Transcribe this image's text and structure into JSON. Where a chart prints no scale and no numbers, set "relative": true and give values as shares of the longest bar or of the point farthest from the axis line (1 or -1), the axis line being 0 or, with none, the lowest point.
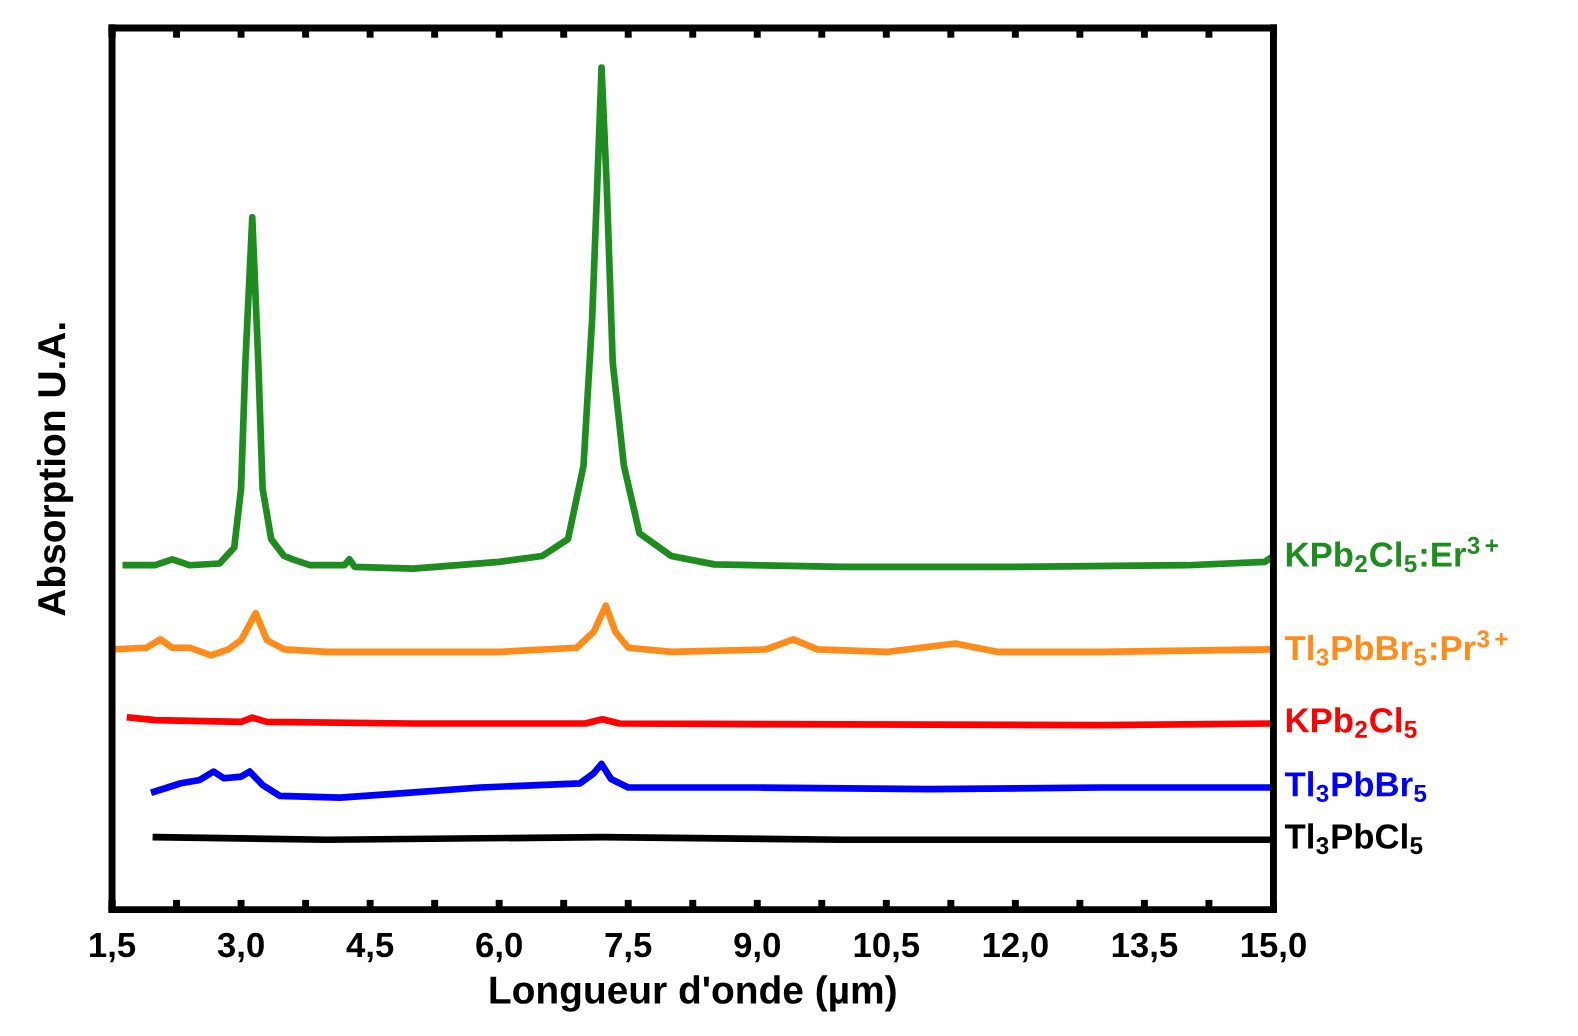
{
  "chart_data": {
    "type": "line",
    "xlabel": "Longueur d'onde (µm)",
    "ylabel": "Absorption U.A.",
    "relative": true,
    "legend": false,
    "grid": false,
    "marker": "none",
    "line_style": "solid",
    "xlim": [
      1.5,
      15.0
    ],
    "xticks": [
      {
        "value": 1.5,
        "label": "1,5"
      },
      {
        "value": 2.25,
        "label": null
      },
      {
        "value": 3.0,
        "label": "3,0"
      },
      {
        "value": 3.75,
        "label": null
      },
      {
        "value": 4.5,
        "label": "4,5"
      },
      {
        "value": 5.25,
        "label": null
      },
      {
        "value": 6.0,
        "label": "6,0"
      },
      {
        "value": 6.75,
        "label": null
      },
      {
        "value": 7.5,
        "label": "7,5"
      },
      {
        "value": 8.25,
        "label": null
      },
      {
        "value": 9.0,
        "label": "9,0"
      },
      {
        "value": 9.75,
        "label": null
      },
      {
        "value": 10.5,
        "label": "10,5"
      },
      {
        "value": 11.25,
        "label": null
      },
      {
        "value": 12.0,
        "label": "12,0"
      },
      {
        "value": 12.75,
        "label": null
      },
      {
        "value": 13.5,
        "label": "13,5"
      },
      {
        "value": 14.25,
        "label": null
      },
      {
        "value": 15.0,
        "label": "15,0"
      }
    ],
    "series": [
      {
        "name": "KPb$_{2}$Cl$_{5}$:Er$^{3+}$",
        "color": "#1e8c1e",
        "x": [
          1.66,
          2.0,
          2.2,
          2.4,
          2.75,
          2.92,
          3.0,
          3.05,
          3.13,
          3.2,
          3.25,
          3.35,
          3.5,
          3.6,
          3.8,
          4.2,
          4.26,
          4.32,
          5.0,
          6.0,
          6.5,
          6.8,
          6.98,
          7.08,
          7.14,
          7.19,
          7.25,
          7.32,
          7.45,
          7.63,
          8.0,
          8.5,
          10.0,
          12.0,
          14.0,
          14.9,
          15.0
        ],
        "values": [
          0.409,
          0.409,
          0.416,
          0.409,
          0.411,
          0.43,
          0.5,
          0.65,
          0.822,
          0.65,
          0.5,
          0.44,
          0.42,
          0.416,
          0.409,
          0.409,
          0.416,
          0.407,
          0.405,
          0.413,
          0.42,
          0.44,
          0.527,
          0.7,
          0.86,
          1.0,
          0.86,
          0.65,
          0.527,
          0.447,
          0.42,
          0.41,
          0.407,
          0.407,
          0.409,
          0.413,
          0.42
        ]
      },
      {
        "name": "Tl$_{3}$PbBr$_{5}$:Pr$^{3+}$",
        "color": "#ff8c1a",
        "x": [
          1.52,
          1.9,
          2.06,
          2.2,
          2.4,
          2.65,
          2.85,
          3.0,
          3.17,
          3.3,
          3.5,
          4.0,
          6.0,
          6.9,
          7.1,
          7.24,
          7.35,
          7.5,
          8.0,
          9.1,
          9.42,
          9.7,
          10.5,
          11.3,
          11.8,
          13.0,
          15.0
        ],
        "values": [
          0.309,
          0.311,
          0.321,
          0.311,
          0.311,
          0.302,
          0.309,
          0.32,
          0.352,
          0.32,
          0.309,
          0.306,
          0.306,
          0.311,
          0.33,
          0.361,
          0.33,
          0.311,
          0.306,
          0.309,
          0.321,
          0.309,
          0.306,
          0.316,
          0.306,
          0.306,
          0.309
        ]
      },
      {
        "name": "KPb$_{2}$Cl$_{5}$",
        "color": "#ff0000",
        "x": [
          1.71,
          2.0,
          3.0,
          3.13,
          3.3,
          5.0,
          7.0,
          7.2,
          7.4,
          10.0,
          13.0,
          15.0
        ],
        "values": [
          0.228,
          0.225,
          0.223,
          0.228,
          0.223,
          0.221,
          0.221,
          0.226,
          0.221,
          0.22,
          0.219,
          0.221
        ]
      },
      {
        "name": "Tl$_{3}$PbBr$_{5}$",
        "color": "#0000ff",
        "x": [
          1.99,
          2.3,
          2.52,
          2.68,
          2.8,
          3.0,
          3.1,
          3.25,
          3.45,
          4.15,
          4.85,
          5.78,
          6.94,
          7.1,
          7.19,
          7.3,
          7.5,
          9.0,
          11.0,
          13.0,
          15.0
        ],
        "values": [
          0.14,
          0.15,
          0.154,
          0.164,
          0.156,
          0.158,
          0.164,
          0.148,
          0.135,
          0.133,
          0.138,
          0.145,
          0.15,
          0.162,
          0.173,
          0.155,
          0.145,
          0.145,
          0.143,
          0.145,
          0.145
        ]
      },
      {
        "name": "Tl$_{3}$PbCl$_{5}$",
        "color": "#000000",
        "x": [
          2.01,
          4.0,
          7.2,
          10.0,
          15.0
        ],
        "values": [
          0.086,
          0.083,
          0.086,
          0.083,
          0.083
        ]
      }
    ]
  }
}
